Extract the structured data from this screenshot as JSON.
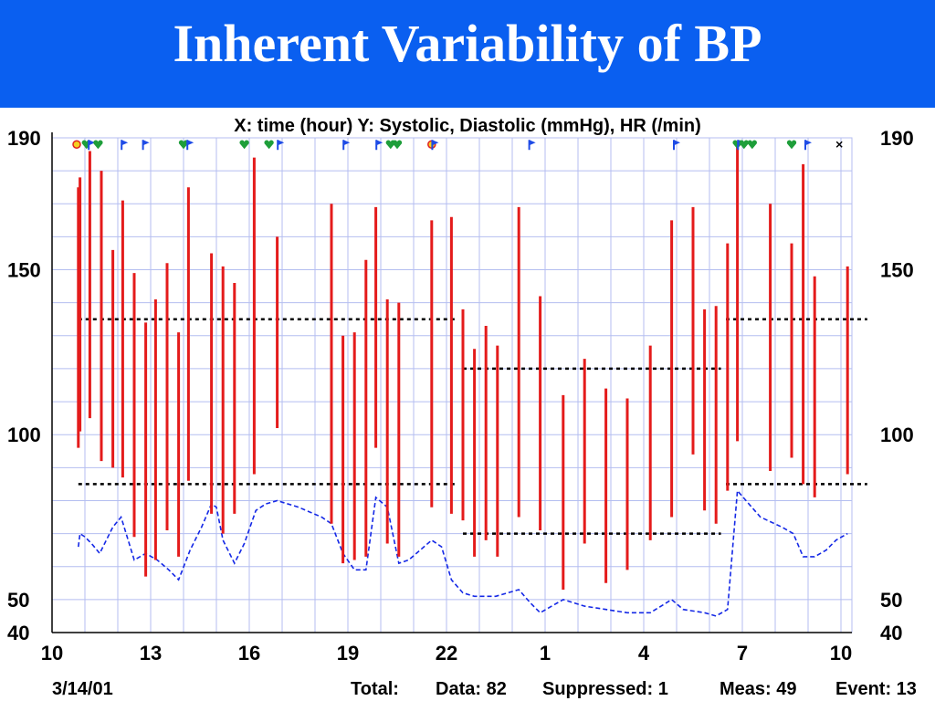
{
  "slide": {
    "title": "Inherent Variability of BP"
  },
  "colors": {
    "header_bg": "#0a5ff0",
    "grid": "#b4bef0",
    "systolic_bar": "#e41b1b",
    "hr_line": "#1428e6",
    "threshold": "#000000",
    "event_green": "#1e9e3a",
    "event_flag": "#1e4be6"
  },
  "chart_data": {
    "type": "bar",
    "title": "X: time (hour)  Y: Systolic, Diastolic (mmHg), HR (/min)",
    "x_ticks": [
      "10",
      "13",
      "16",
      "19",
      "22",
      "1",
      "4",
      "7",
      "10"
    ],
    "y_ticks_left": [
      "190",
      "150",
      "100",
      "50",
      "40"
    ],
    "y_ticks_right": [
      "190",
      "150",
      "100",
      "50",
      "40"
    ],
    "ylim": [
      40,
      190
    ],
    "xlim": [
      10,
      34
    ],
    "grid": true,
    "date": "3/14/01",
    "summary": {
      "total_label": "Total:",
      "data": "Data: 82",
      "suppressed": "Suppressed: 1",
      "meas": "Meas: 49",
      "event": "Event: 13"
    },
    "bp_measurements": [
      {
        "t": 10.8,
        "sys": 175,
        "dia": 96
      },
      {
        "t": 10.85,
        "sys": 178,
        "dia": 101
      },
      {
        "t": 11.15,
        "sys": 186,
        "dia": 105
      },
      {
        "t": 11.5,
        "sys": 180,
        "dia": 92
      },
      {
        "t": 11.85,
        "sys": 156,
        "dia": 90
      },
      {
        "t": 12.15,
        "sys": 171,
        "dia": 87
      },
      {
        "t": 12.5,
        "sys": 149,
        "dia": 69
      },
      {
        "t": 12.85,
        "sys": 134,
        "dia": 57
      },
      {
        "t": 13.15,
        "sys": 141,
        "dia": 62
      },
      {
        "t": 13.5,
        "sys": 152,
        "dia": 71
      },
      {
        "t": 13.85,
        "sys": 131,
        "dia": 63
      },
      {
        "t": 14.15,
        "sys": 175,
        "dia": 86
      },
      {
        "t": 14.85,
        "sys": 155,
        "dia": 76
      },
      {
        "t": 15.2,
        "sys": 151,
        "dia": 70
      },
      {
        "t": 15.55,
        "sys": 146,
        "dia": 76
      },
      {
        "t": 16.15,
        "sys": 184,
        "dia": 88
      },
      {
        "t": 16.85,
        "sys": 160,
        "dia": 102
      },
      {
        "t": 18.5,
        "sys": 170,
        "dia": 73
      },
      {
        "t": 18.85,
        "sys": 130,
        "dia": 61
      },
      {
        "t": 19.2,
        "sys": 131,
        "dia": 62
      },
      {
        "t": 19.55,
        "sys": 153,
        "dia": 63
      },
      {
        "t": 19.85,
        "sys": 169,
        "dia": 96
      },
      {
        "t": 20.2,
        "sys": 141,
        "dia": 67
      },
      {
        "t": 20.55,
        "sys": 140,
        "dia": 63
      },
      {
        "t": 21.55,
        "sys": 165,
        "dia": 78
      },
      {
        "t": 22.15,
        "sys": 166,
        "dia": 76
      },
      {
        "t": 22.5,
        "sys": 138,
        "dia": 74
      },
      {
        "t": 22.85,
        "sys": 126,
        "dia": 63
      },
      {
        "t": 23.2,
        "sys": 133,
        "dia": 68
      },
      {
        "t": 23.55,
        "sys": 127,
        "dia": 63
      },
      {
        "t": 24.2,
        "sys": 169,
        "dia": 75
      },
      {
        "t": 24.85,
        "sys": 142,
        "dia": 71
      },
      {
        "t": 25.55,
        "sys": 112,
        "dia": 53
      },
      {
        "t": 26.2,
        "sys": 123,
        "dia": 67
      },
      {
        "t": 26.85,
        "sys": 114,
        "dia": 55
      },
      {
        "t": 27.5,
        "sys": 111,
        "dia": 59
      },
      {
        "t": 28.2,
        "sys": 127,
        "dia": 68
      },
      {
        "t": 28.85,
        "sys": 165,
        "dia": 75
      },
      {
        "t": 29.5,
        "sys": 169,
        "dia": 94
      },
      {
        "t": 29.85,
        "sys": 138,
        "dia": 77
      },
      {
        "t": 30.2,
        "sys": 139,
        "dia": 73
      },
      {
        "t": 30.55,
        "sys": 158,
        "dia": 83
      },
      {
        "t": 30.85,
        "sys": 188,
        "dia": 98
      },
      {
        "t": 31.85,
        "sys": 170,
        "dia": 89
      },
      {
        "t": 32.5,
        "sys": 158,
        "dia": 93
      },
      {
        "t": 32.85,
        "sys": 182,
        "dia": 85
      },
      {
        "t": 33.2,
        "sys": 148,
        "dia": 81
      },
      {
        "t": 34.2,
        "sys": 151,
        "dia": 88
      }
    ],
    "thresholds": [
      {
        "y": 135,
        "x0": 10.8,
        "x1": 22.35
      },
      {
        "y": 85,
        "x0": 10.8,
        "x1": 22.35
      },
      {
        "y": 120,
        "x0": 22.5,
        "x1": 30.35
      },
      {
        "y": 70,
        "x0": 22.5,
        "x1": 30.35
      },
      {
        "y": 135,
        "x0": 30.5,
        "x1": 34.8
      },
      {
        "y": 85,
        "x0": 30.5,
        "x1": 34.8
      }
    ],
    "heart_rate": [
      [
        10.8,
        66
      ],
      [
        10.85,
        70
      ],
      [
        11.0,
        69
      ],
      [
        11.2,
        67
      ],
      [
        11.45,
        64
      ],
      [
        11.85,
        72
      ],
      [
        12.1,
        75
      ],
      [
        12.5,
        62
      ],
      [
        12.85,
        64
      ],
      [
        13.2,
        62
      ],
      [
        13.55,
        59
      ],
      [
        13.85,
        56
      ],
      [
        14.2,
        65
      ],
      [
        14.55,
        72
      ],
      [
        14.85,
        79
      ],
      [
        15.0,
        78
      ],
      [
        15.2,
        68
      ],
      [
        15.55,
        61
      ],
      [
        15.85,
        67
      ],
      [
        16.2,
        77
      ],
      [
        16.5,
        79
      ],
      [
        16.85,
        80
      ],
      [
        17.5,
        78
      ],
      [
        18.2,
        75
      ],
      [
        18.5,
        73
      ],
      [
        18.85,
        64
      ],
      [
        19.2,
        59
      ],
      [
        19.55,
        59
      ],
      [
        19.85,
        81
      ],
      [
        20.2,
        78
      ],
      [
        20.55,
        61
      ],
      [
        20.85,
        62
      ],
      [
        21.55,
        68
      ],
      [
        21.85,
        66
      ],
      [
        22.15,
        56
      ],
      [
        22.5,
        52
      ],
      [
        22.85,
        51
      ],
      [
        23.5,
        51
      ],
      [
        24.2,
        53
      ],
      [
        24.55,
        49
      ],
      [
        24.85,
        46
      ],
      [
        25.2,
        48
      ],
      [
        25.55,
        50
      ],
      [
        26.2,
        48
      ],
      [
        26.85,
        47
      ],
      [
        27.5,
        46
      ],
      [
        28.2,
        46
      ],
      [
        28.85,
        50
      ],
      [
        29.2,
        47
      ],
      [
        29.85,
        46
      ],
      [
        30.2,
        45
      ],
      [
        30.55,
        47
      ],
      [
        30.85,
        83
      ],
      [
        31.2,
        79
      ],
      [
        31.55,
        75
      ],
      [
        32.2,
        72
      ],
      [
        32.55,
        70
      ],
      [
        32.85,
        63
      ],
      [
        33.2,
        63
      ],
      [
        33.55,
        65
      ],
      [
        33.85,
        68
      ],
      [
        34.2,
        70
      ]
    ],
    "event_markers": [
      {
        "t": 10.75,
        "kind": "circle"
      },
      {
        "t": 11.05,
        "kind": "heart"
      },
      {
        "t": 11.2,
        "kind": "flag"
      },
      {
        "t": 11.4,
        "kind": "heart"
      },
      {
        "t": 12.2,
        "kind": "flag"
      },
      {
        "t": 12.85,
        "kind": "flag"
      },
      {
        "t": 14.0,
        "kind": "heart"
      },
      {
        "t": 14.2,
        "kind": "flag"
      },
      {
        "t": 15.85,
        "kind": "heart"
      },
      {
        "t": 16.6,
        "kind": "heart"
      },
      {
        "t": 16.95,
        "kind": "flag"
      },
      {
        "t": 18.95,
        "kind": "flag"
      },
      {
        "t": 19.95,
        "kind": "flag"
      },
      {
        "t": 20.3,
        "kind": "heart"
      },
      {
        "t": 20.5,
        "kind": "heart"
      },
      {
        "t": 21.55,
        "kind": "circle"
      },
      {
        "t": 21.65,
        "kind": "flag"
      },
      {
        "t": 24.6,
        "kind": "flag"
      },
      {
        "t": 29.0,
        "kind": "flag"
      },
      {
        "t": 30.85,
        "kind": "heart"
      },
      {
        "t": 30.95,
        "kind": "flag"
      },
      {
        "t": 31.05,
        "kind": "heart"
      },
      {
        "t": 31.3,
        "kind": "heart"
      },
      {
        "t": 32.5,
        "kind": "heart"
      },
      {
        "t": 33.0,
        "kind": "flag"
      },
      {
        "t": 33.95,
        "kind": "cross"
      }
    ]
  }
}
